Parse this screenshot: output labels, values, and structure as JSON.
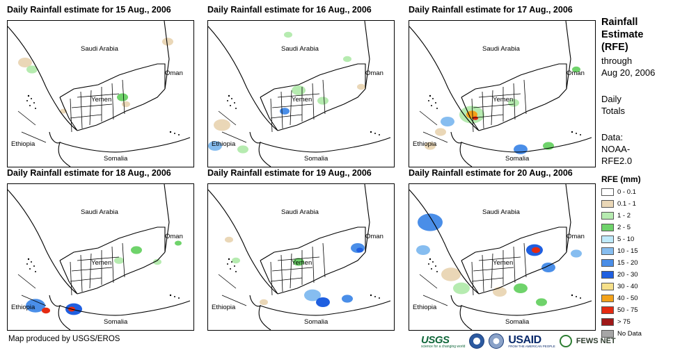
{
  "panels": [
    {
      "title": "Daily Rainfall estimate for 15 Aug., 2006"
    },
    {
      "title": "Daily Rainfall estimate for 16 Aug., 2006"
    },
    {
      "title": "Daily Rainfall estimate for 17 Aug., 2006"
    },
    {
      "title": "Daily Rainfall estimate for 18 Aug., 2006"
    },
    {
      "title": "Daily Rainfall estimate for 19 Aug., 2006"
    },
    {
      "title": "Daily Rainfall estimate for 20 Aug., 2006"
    }
  ],
  "map_labels": {
    "saudi": "Saudi Arabia",
    "oman": "Oman",
    "yemen": "Yemen",
    "ethiopia": "Ethiopia",
    "somalia": "Somalia"
  },
  "sidebar": {
    "title_lines": [
      "Rainfall",
      "Estimate",
      "(RFE)"
    ],
    "through_lines": [
      "through",
      "Aug 20, 2006"
    ],
    "daily_lines": [
      "Daily",
      "Totals"
    ],
    "data_lines": [
      "Data:",
      "NOAA-",
      "RFE2.0"
    ]
  },
  "legend": {
    "title": "RFE (mm)",
    "items": [
      {
        "label": "0 - 0.1",
        "color": "#ffffff"
      },
      {
        "label": "0.1 - 1",
        "color": "#ead7b7"
      },
      {
        "label": "1 - 2",
        "color": "#b6ebb0"
      },
      {
        "label": "2 - 5",
        "color": "#6fd36b"
      },
      {
        "label": "5 - 10",
        "color": "#bfeafa"
      },
      {
        "label": "10 - 15",
        "color": "#86bdf0"
      },
      {
        "label": "15 - 20",
        "color": "#4a8ee8"
      },
      {
        "label": "20 - 30",
        "color": "#1f5fe0"
      },
      {
        "label": "30 - 40",
        "color": "#f6e08a"
      },
      {
        "label": "40 - 50",
        "color": "#f3a21a"
      },
      {
        "label": "50 - 75",
        "color": "#e52b12"
      },
      {
        "label": "> 75",
        "color": "#a01818"
      },
      {
        "label": "No Data",
        "color": "#a6a6a6"
      }
    ]
  },
  "credit": "Map produced by USGS/EROS",
  "logos": {
    "usgs": "USGS",
    "usgs_tagline": "science for a changing world",
    "usaid": "USAID",
    "usaid_tagline": "FROM THE AMERICAN PEOPLE",
    "fews": "FEWS NET"
  }
}
